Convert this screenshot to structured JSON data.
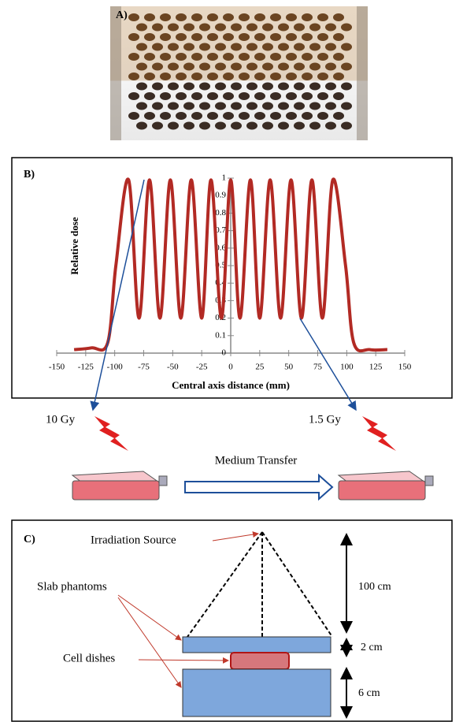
{
  "panel_a": {
    "label": "A)"
  },
  "chart_data": {
    "type": "line",
    "label": "B)",
    "x_label": "Central axis distance (mm)",
    "y_label": "Relative dose",
    "x": [
      -135,
      -120,
      -106,
      -99,
      -88,
      -79,
      -70,
      -61,
      -52,
      -43,
      -34,
      -25,
      -17,
      -8,
      0,
      8,
      17,
      25,
      34,
      43,
      52,
      61,
      70,
      79,
      88,
      99,
      106,
      120,
      135
    ],
    "values": [
      0.02,
      0.03,
      0.06,
      0.5,
      0.99,
      0.2,
      0.99,
      0.2,
      0.99,
      0.2,
      0.99,
      0.2,
      0.99,
      0.2,
      0.99,
      0.2,
      0.99,
      0.2,
      0.99,
      0.2,
      0.99,
      0.2,
      0.99,
      0.2,
      0.99,
      0.5,
      0.06,
      0.02,
      0.02
    ],
    "color": "#b22a24",
    "xlim": [
      -150,
      150
    ],
    "ylim": [
      0,
      1
    ],
    "xticks": [
      -150,
      -125,
      -100,
      -75,
      -50,
      -25,
      0,
      25,
      50,
      75,
      100,
      125,
      150
    ],
    "yticks": [
      0,
      0.1,
      0.2,
      0.3,
      0.4,
      0.5,
      0.6,
      0.7,
      0.8,
      0.9,
      1
    ]
  },
  "transfer": {
    "left_dose": "10 Gy",
    "right_dose": "1.5 Gy",
    "arrow_label": "Medium Transfer"
  },
  "panel_c": {
    "label": "C)",
    "source": "Irradiation Source",
    "slabs": "Slab phantoms",
    "dishes": "Cell dishes",
    "dist_source": "100 cm",
    "dist_dish": "2 cm",
    "dist_slab": "6 cm"
  }
}
